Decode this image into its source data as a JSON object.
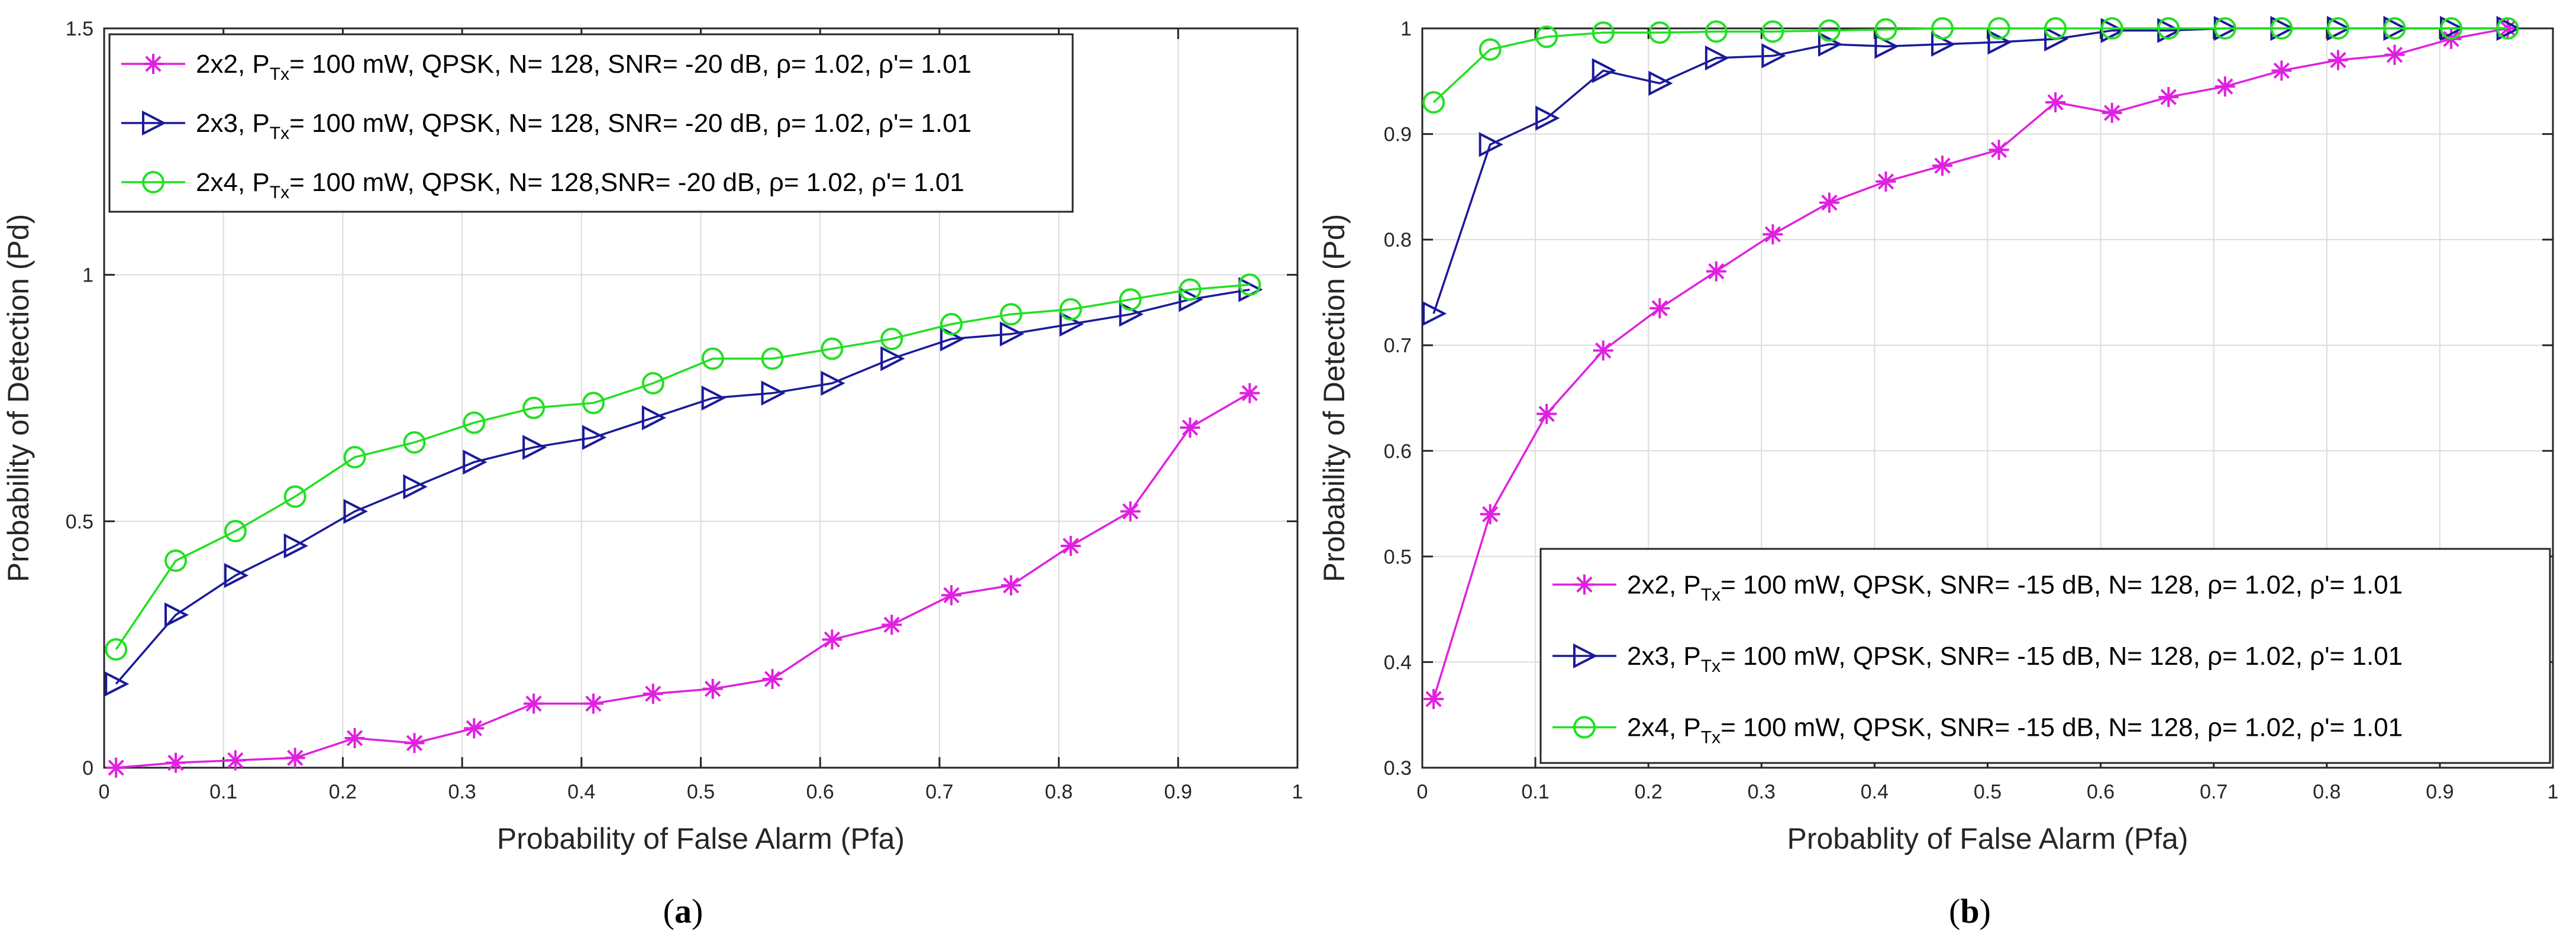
{
  "colors": {
    "s2x2": "#e020e0",
    "s2x3": "#1a1a9a",
    "s2x4": "#22e022",
    "grid": "#dcdcdc",
    "axis": "#262626"
  },
  "chart_data": [
    {
      "type": "line",
      "panel": "a",
      "caption_open": "(",
      "caption_letter": "a",
      "caption_close": ")",
      "xlabel": "Probability of False Alarm (Pfa)",
      "ylabel": "Probability of Detection (Pd)",
      "xlim": [
        0,
        1
      ],
      "ylim": [
        0,
        1.5
      ],
      "xticks": [
        0,
        0.1,
        0.2,
        0.3,
        0.4,
        0.5,
        0.6,
        0.7,
        0.8,
        0.9,
        1
      ],
      "xtick_labels": [
        "0",
        "0.1",
        "0.2",
        "0.3",
        "0.4",
        "0.5",
        "0.6",
        "0.7",
        "0.8",
        "0.9",
        "1"
      ],
      "yticks": [
        0,
        0.5,
        1,
        1.5
      ],
      "ytick_labels": [
        "0",
        "0.5",
        "1",
        "1.5"
      ],
      "legend_location": "top-left",
      "x": [
        0.01,
        0.06,
        0.11,
        0.16,
        0.21,
        0.26,
        0.31,
        0.36,
        0.41,
        0.46,
        0.51,
        0.56,
        0.61,
        0.66,
        0.71,
        0.76,
        0.81,
        0.86,
        0.91,
        0.96
      ],
      "series": [
        {
          "key": "s2x2",
          "name": "2x2, PTx= 100 mW, QPSK, N= 128, SNR= -20 dB, ρ= 1.02, ρ'= 1.01",
          "legend_pre": "2x2, P",
          "legend_sub": "Tx",
          "legend_post": "= 100 mW, QPSK, N= 128, SNR= -20 dB, ρ= 1.02, ρ'= 1.01",
          "marker": "star",
          "values": [
            0.0,
            0.01,
            0.015,
            0.02,
            0.06,
            0.05,
            0.08,
            0.13,
            0.13,
            0.15,
            0.16,
            0.18,
            0.26,
            0.29,
            0.35,
            0.37,
            0.45,
            0.52,
            0.69,
            0.76
          ]
        },
        {
          "key": "s2x3",
          "name": "2x3, PTx= 100 mW, QPSK, N= 128, SNR= -20 dB, ρ= 1.02, ρ'= 1.01",
          "legend_pre": "2x3, P",
          "legend_sub": "Tx",
          "legend_post": "= 100 mW, QPSK, N= 128, SNR= -20 dB, ρ= 1.02, ρ'= 1.01",
          "marker": "triangle-right",
          "values": [
            0.17,
            0.31,
            0.39,
            0.45,
            0.52,
            0.57,
            0.62,
            0.65,
            0.67,
            0.71,
            0.75,
            0.76,
            0.78,
            0.83,
            0.87,
            0.88,
            0.9,
            0.92,
            0.95,
            0.97
          ]
        },
        {
          "key": "s2x4",
          "name": "2x4, PTx= 100 mW, QPSK, N= 128,SNR= -20 dB, ρ= 1.02, ρ'= 1.01",
          "legend_pre": "2x4, P",
          "legend_sub": "Tx",
          "legend_post": "= 100 mW, QPSK, N= 128,SNR= -20 dB, ρ= 1.02, ρ'= 1.01",
          "marker": "circle",
          "values": [
            0.24,
            0.42,
            0.48,
            0.55,
            0.63,
            0.66,
            0.7,
            0.73,
            0.74,
            0.78,
            0.83,
            0.83,
            0.85,
            0.87,
            0.9,
            0.92,
            0.93,
            0.95,
            0.97,
            0.98
          ]
        }
      ]
    },
    {
      "type": "line",
      "panel": "b",
      "caption_open": "(",
      "caption_letter": "b",
      "caption_close": ")",
      "xlabel": "Probablity of False Alarm (Pfa)",
      "ylabel": "Probability of Detection (Pd)",
      "xlim": [
        0,
        1
      ],
      "ylim": [
        0.3,
        1
      ],
      "xticks": [
        0,
        0.1,
        0.2,
        0.3,
        0.4,
        0.5,
        0.6,
        0.7,
        0.8,
        0.9,
        1
      ],
      "xtick_labels": [
        "0",
        "0.1",
        "0.2",
        "0.3",
        "0.4",
        "0.5",
        "0.6",
        "0.7",
        "0.8",
        "0.9",
        "1"
      ],
      "yticks": [
        0.3,
        0.4,
        0.5,
        0.6,
        0.7,
        0.8,
        0.9,
        1
      ],
      "ytick_labels": [
        "0.3",
        "0.4",
        "0.5",
        "0.6",
        "0.7",
        "0.8",
        "0.9",
        "1"
      ],
      "legend_location": "bottom-right",
      "x": [
        0.01,
        0.06,
        0.11,
        0.16,
        0.21,
        0.26,
        0.31,
        0.36,
        0.41,
        0.46,
        0.51,
        0.56,
        0.61,
        0.66,
        0.71,
        0.76,
        0.81,
        0.86,
        0.91,
        0.96
      ],
      "series": [
        {
          "key": "s2x2",
          "name": "2x2, PTx= 100 mW, QPSK, SNR= -15 dB, N= 128, ρ= 1.02, ρ'= 1.01",
          "legend_pre": "2x2, P",
          "legend_sub": "Tx",
          "legend_post": "= 100 mW, QPSK, SNR= -15 dB, N= 128, ρ= 1.02, ρ'= 1.01",
          "marker": "star",
          "values": [
            0.365,
            0.54,
            0.635,
            0.695,
            0.735,
            0.77,
            0.805,
            0.835,
            0.855,
            0.87,
            0.885,
            0.93,
            0.92,
            0.935,
            0.945,
            0.96,
            0.97,
            0.975,
            0.99,
            1.0
          ]
        },
        {
          "key": "s2x3",
          "name": "2x3, PTx= 100 mW, QPSK, SNR= -15 dB, N= 128, ρ= 1.02, ρ'= 1.01",
          "legend_pre": "2x3, P",
          "legend_sub": "Tx",
          "legend_post": "= 100 mW, QPSK, SNR= -15 dB, N= 128, ρ= 1.02, ρ'= 1.01",
          "marker": "triangle-right",
          "values": [
            0.73,
            0.89,
            0.915,
            0.96,
            0.948,
            0.972,
            0.974,
            0.985,
            0.983,
            0.985,
            0.987,
            0.99,
            0.998,
            0.998,
            1.0,
            1.0,
            1.0,
            1.0,
            1.0,
            1.0
          ]
        },
        {
          "key": "s2x4",
          "name": "2x4, PTx= 100 mW, QPSK, SNR= -15 dB, N= 128, ρ= 1.02, ρ'= 1.01",
          "legend_pre": "2x4, P",
          "legend_sub": "Tx",
          "legend_post": "= 100 mW, QPSK, SNR= -15 dB, N= 128, ρ= 1.02, ρ'= 1.01",
          "marker": "circle",
          "values": [
            0.93,
            0.98,
            0.992,
            0.996,
            0.996,
            0.997,
            0.997,
            0.998,
            0.999,
            1.0,
            1.0,
            1.0,
            1.0,
            1.0,
            1.0,
            1.0,
            1.0,
            1.0,
            1.0,
            1.0
          ]
        }
      ]
    }
  ]
}
